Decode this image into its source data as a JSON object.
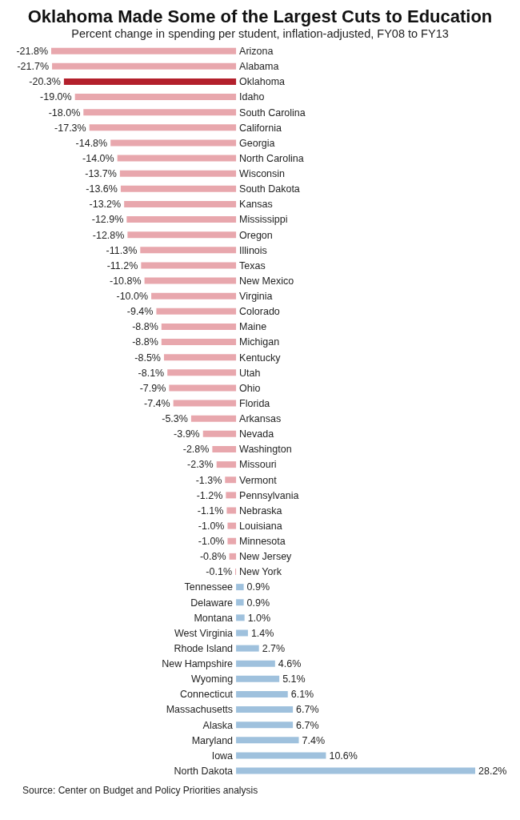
{
  "chart_data": {
    "type": "bar",
    "orientation": "horizontal",
    "title": "Oklahoma Made Some of the Largest Cuts to Education",
    "subtitle": "Percent change in spending per student, inflation-adjusted, FY08 to FY13",
    "categories": [
      "Arizona",
      "Alabama",
      "Oklahoma",
      "Idaho",
      "South Carolina",
      "California",
      "Georgia",
      "North Carolina",
      "Wisconsin",
      "South Dakota",
      "Kansas",
      "Mississippi",
      "Oregon",
      "Illinois",
      "Texas",
      "New Mexico",
      "Virginia",
      "Colorado",
      "Maine",
      "Michigan",
      "Kentucky",
      "Utah",
      "Ohio",
      "Florida",
      "Arkansas",
      "Nevada",
      "Washington",
      "Missouri",
      "Vermont",
      "Pennsylvania",
      "Nebraska",
      "Louisiana",
      "Minnesota",
      "New Jersey",
      "New York",
      "Tennessee",
      "Delaware",
      "Montana",
      "West Virginia",
      "Rhode Island",
      "New Hampshire",
      "Wyoming",
      "Connecticut",
      "Massachusetts",
      "Alaska",
      "Maryland",
      "Iowa",
      "North Dakota"
    ],
    "values": [
      -21.8,
      -21.7,
      -20.3,
      -19.0,
      -18.0,
      -17.3,
      -14.8,
      -14.0,
      -13.7,
      -13.6,
      -13.2,
      -12.9,
      -12.8,
      -11.3,
      -11.2,
      -10.8,
      -10.0,
      -9.4,
      -8.8,
      -8.8,
      -8.5,
      -8.1,
      -7.9,
      -7.4,
      -5.3,
      -3.9,
      -2.8,
      -2.3,
      -1.3,
      -1.2,
      -1.1,
      -1.0,
      -1.0,
      -0.8,
      -0.1,
      0.9,
      0.9,
      1.0,
      1.4,
      2.7,
      4.6,
      5.1,
      6.1,
      6.7,
      6.7,
      7.4,
      10.6,
      28.2
    ],
    "value_labels": [
      "-21.8%",
      "-21.7%",
      "-20.3%",
      "-19.0%",
      "-18.0%",
      "-17.3%",
      "-14.8%",
      "-14.0%",
      "-13.7%",
      "-13.6%",
      "-13.2%",
      "-12.9%",
      "-12.8%",
      "-11.3%",
      "-11.2%",
      "-10.8%",
      "-10.0%",
      "-9.4%",
      "-8.8%",
      "-8.8%",
      "-8.5%",
      "-8.1%",
      "-7.9%",
      "-7.4%",
      "-5.3%",
      "-3.9%",
      "-2.8%",
      "-2.3%",
      "-1.3%",
      "-1.2%",
      "-1.1%",
      "-1.0%",
      "-1.0%",
      "-0.8%",
      "-0.1%",
      "0.9%",
      "0.9%",
      "1.0%",
      "1.4%",
      "2.7%",
      "4.6%",
      "5.1%",
      "6.1%",
      "6.7%",
      "6.7%",
      "7.4%",
      "10.6%",
      "28.2%"
    ],
    "colors": [
      "#e8a7ad",
      "#e8a7ad",
      "#b3202c",
      "#e8a7ad",
      "#e8a7ad",
      "#e8a7ad",
      "#e8a7ad",
      "#e8a7ad",
      "#e8a7ad",
      "#e8a7ad",
      "#e8a7ad",
      "#e8a7ad",
      "#e8a7ad",
      "#e8a7ad",
      "#e8a7ad",
      "#e8a7ad",
      "#e8a7ad",
      "#e8a7ad",
      "#e8a7ad",
      "#e8a7ad",
      "#e8a7ad",
      "#e8a7ad",
      "#e8a7ad",
      "#e8a7ad",
      "#e8a7ad",
      "#e8a7ad",
      "#e8a7ad",
      "#e8a7ad",
      "#e8a7ad",
      "#e8a7ad",
      "#e8a7ad",
      "#e8a7ad",
      "#e8a7ad",
      "#e8a7ad",
      "#e8a7ad",
      "#9fc1dd",
      "#9fc1dd",
      "#9fc1dd",
      "#9fc1dd",
      "#9fc1dd",
      "#9fc1dd",
      "#9fc1dd",
      "#9fc1dd",
      "#9fc1dd",
      "#9fc1dd",
      "#9fc1dd",
      "#9fc1dd",
      "#9fc1dd"
    ],
    "annotations": [
      "Source: Center on Budget and Policy Priorities analysis"
    ]
  }
}
